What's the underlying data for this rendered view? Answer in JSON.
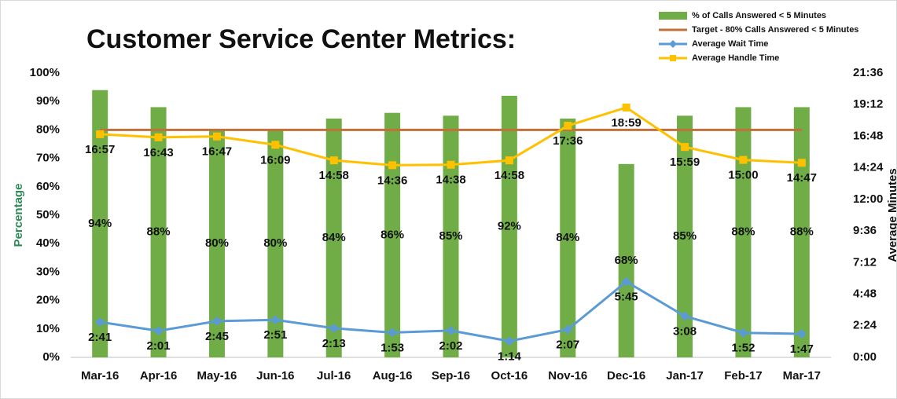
{
  "chart_data": {
    "type": "combo",
    "title": "Customer Service Center Metrics:",
    "y_label": "Percentage",
    "y2_label": "Average Minutes",
    "categories": [
      "Mar-16",
      "Apr-16",
      "May-16",
      "Jun-16",
      "Jul-16",
      "Aug-16",
      "Sep-16",
      "Oct-16",
      "Nov-16",
      "Dec-16",
      "Jan-17",
      "Feb-17",
      "Mar-17"
    ],
    "ylim": [
      0,
      100
    ],
    "yticks": [
      {
        "value": 0,
        "label": "0%"
      },
      {
        "value": 10,
        "label": "10%"
      },
      {
        "value": 20,
        "label": "20%"
      },
      {
        "value": 30,
        "label": "30%"
      },
      {
        "value": 40,
        "label": "40%"
      },
      {
        "value": 50,
        "label": "50%"
      },
      {
        "value": 60,
        "label": "60%"
      },
      {
        "value": 70,
        "label": "70%"
      },
      {
        "value": 80,
        "label": "80%"
      },
      {
        "value": 90,
        "label": "90%"
      },
      {
        "value": 100,
        "label": "100%"
      }
    ],
    "y2lim": [
      0,
      21.6
    ],
    "y2ticks": [
      {
        "value": 0,
        "label": "0:00"
      },
      {
        "value": 2.4,
        "label": "2:24"
      },
      {
        "value": 4.8,
        "label": "4:48"
      },
      {
        "value": 7.2,
        "label": "7:12"
      },
      {
        "value": 9.6,
        "label": "9:36"
      },
      {
        "value": 12,
        "label": "12:00"
      },
      {
        "value": 14.4,
        "label": "14:24"
      },
      {
        "value": 16.8,
        "label": "16:48"
      },
      {
        "value": 19.2,
        "label": "19:12"
      },
      {
        "value": 21.6,
        "label": "21:36"
      }
    ],
    "legend": "top-right",
    "series": [
      {
        "name": "% of Calls Answered < 5 Minutes",
        "type": "bar",
        "color": "#70ad47",
        "values": [
          94,
          88,
          80,
          80,
          84,
          86,
          85,
          92,
          84,
          68,
          85,
          88,
          88
        ],
        "value_labels": [
          "94%",
          "88%",
          "80%",
          "80%",
          "84%",
          "86%",
          "85%",
          "92%",
          "84%",
          "68%",
          "85%",
          "88%",
          "88%"
        ]
      },
      {
        "name": "Target - 80% Calls Answered < 5 Minutes",
        "type": "line",
        "color": "#c0703a",
        "values": [
          80,
          80,
          80,
          80,
          80,
          80,
          80,
          80,
          80,
          80,
          80,
          80,
          80
        ]
      },
      {
        "name": "Average Wait Time",
        "type": "line",
        "axis": "y2",
        "marker": "diamond",
        "color": "#5b9bd5",
        "values": [
          2.6833,
          2.0167,
          2.75,
          2.85,
          2.2167,
          1.8833,
          2.0333,
          1.2333,
          2.1167,
          5.75,
          3.1333,
          1.8667,
          1.7833
        ],
        "value_labels": [
          "2:41",
          "2:01",
          "2:45",
          "2:51",
          "2:13",
          "1:53",
          "2:02",
          "1:14",
          "2:07",
          "5:45",
          "3:08",
          "1:52",
          "1:47"
        ]
      },
      {
        "name": "Average Handle Time",
        "type": "line",
        "axis": "y2",
        "marker": "square",
        "color": "#ffc000",
        "values": [
          16.95,
          16.7167,
          16.7833,
          16.15,
          14.9667,
          14.6,
          14.6333,
          14.9667,
          17.6,
          18.9833,
          15.9833,
          15,
          14.7833
        ],
        "value_labels": [
          "16:57",
          "16:43",
          "16:47",
          "16:09",
          "14:58",
          "14:36",
          "14:38",
          "14:58",
          "17:36",
          "18:59",
          "15:59",
          "15:00",
          "14:47"
        ]
      }
    ]
  }
}
